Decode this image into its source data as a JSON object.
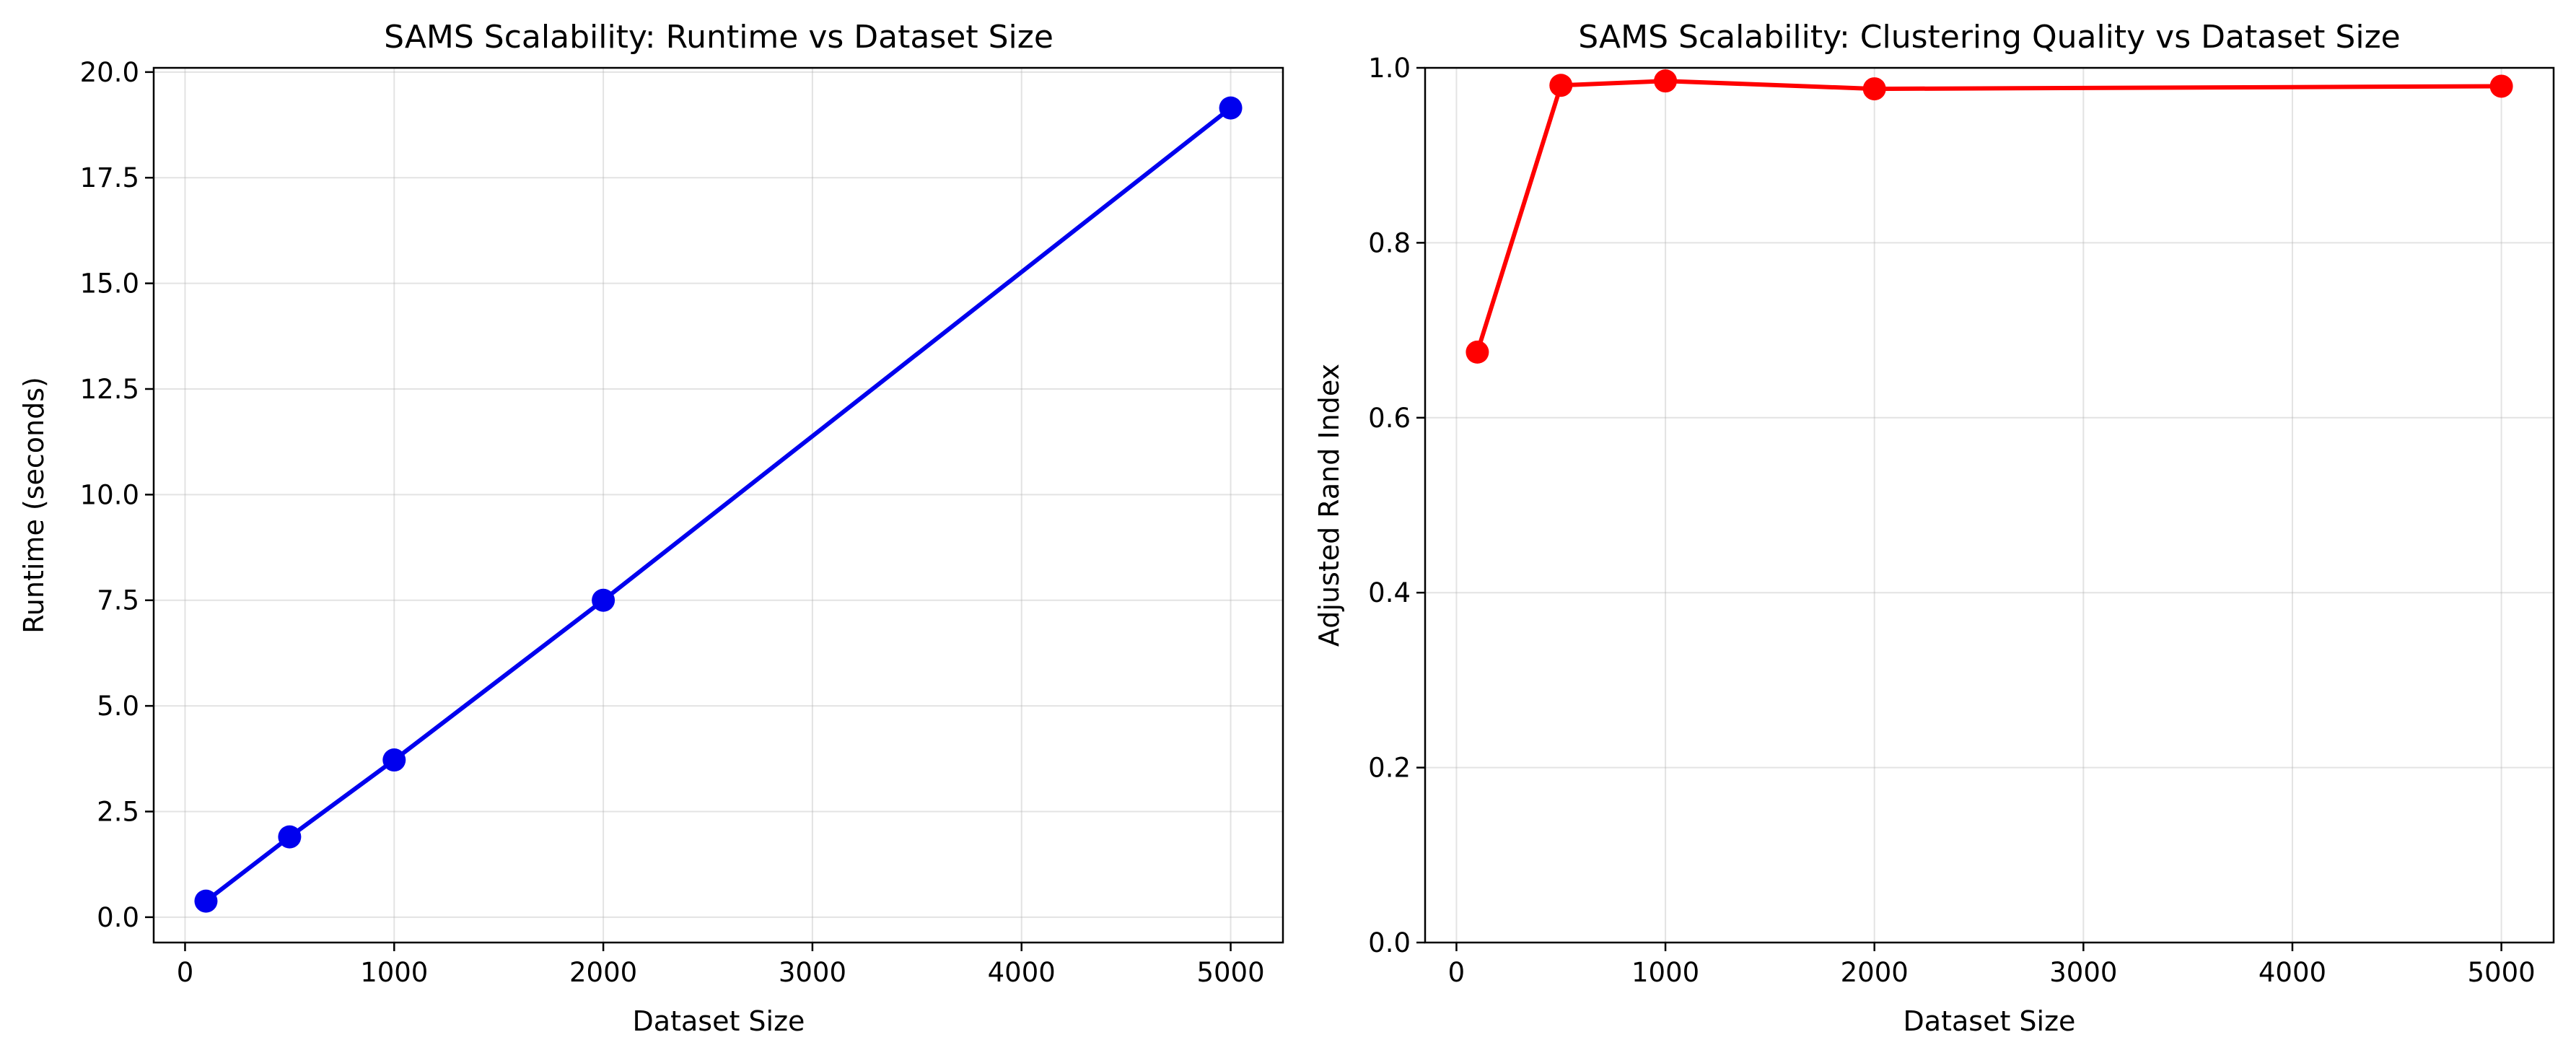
{
  "chart_data": [
    {
      "type": "line",
      "title": "SAMS Scalability: Runtime vs Dataset Size",
      "xlabel": "Dataset Size",
      "ylabel": "Runtime (seconds)",
      "x": [
        100,
        500,
        1000,
        2000,
        5000
      ],
      "series": [
        {
          "values": [
            0.38,
            1.9,
            3.72,
            7.5,
            19.15
          ],
          "color": "#0000ee"
        }
      ],
      "xlim": [
        -150,
        5250
      ],
      "ylim": [
        -0.6,
        20.1
      ],
      "xticks": [
        0,
        1000,
        2000,
        3000,
        4000,
        5000
      ],
      "yticks": [
        0.0,
        2.5,
        5.0,
        7.5,
        10.0,
        12.5,
        15.0,
        17.5,
        20.0
      ],
      "xtick_labels": [
        "0",
        "1000",
        "2000",
        "3000",
        "4000",
        "5000"
      ],
      "ytick_labels": [
        "0.0",
        "2.5",
        "5.0",
        "7.5",
        "10.0",
        "12.5",
        "15.0",
        "17.5",
        "20.0"
      ],
      "grid": true,
      "marker": "circle"
    },
    {
      "type": "line",
      "title": "SAMS Scalability: Clustering Quality vs Dataset Size",
      "xlabel": "Dataset Size",
      "ylabel": "Adjusted Rand Index",
      "x": [
        100,
        500,
        1000,
        2000,
        5000
      ],
      "series": [
        {
          "values": [
            0.675,
            0.98,
            0.985,
            0.976,
            0.979
          ],
          "color": "#ff0000"
        }
      ],
      "xlim": [
        -150,
        5250
      ],
      "ylim": [
        0.0,
        1.0
      ],
      "xticks": [
        0,
        1000,
        2000,
        3000,
        4000,
        5000
      ],
      "yticks": [
        0.0,
        0.2,
        0.4,
        0.6,
        0.8,
        1.0
      ],
      "xtick_labels": [
        "0",
        "1000",
        "2000",
        "3000",
        "4000",
        "5000"
      ],
      "ytick_labels": [
        "0.0",
        "0.2",
        "0.4",
        "0.6",
        "0.8",
        "1.0"
      ],
      "grid": true,
      "marker": "circle"
    }
  ]
}
